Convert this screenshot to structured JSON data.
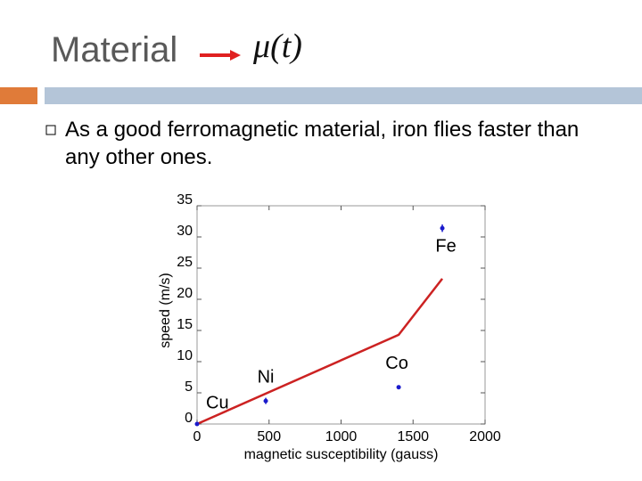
{
  "header": {
    "title": "Material",
    "formula": "μ(t)"
  },
  "bullets": [
    "As a good ferromagnetic material, iron flies faster than any other ones."
  ],
  "chart_data": {
    "type": "scatter",
    "xlabel": "magnetic susceptibility (gauss)",
    "ylabel": "speed (m/s)",
    "xlim": [
      0,
      2000
    ],
    "ylim": [
      0,
      35
    ],
    "xticks": [
      0,
      500,
      1000,
      1500,
      2000
    ],
    "yticks": [
      0,
      5,
      10,
      15,
      20,
      25,
      30,
      35
    ],
    "x": [
      0,
      477,
      1400,
      1703
    ],
    "values": [
      0,
      3.7,
      5.9,
      31.4
    ],
    "errors": [
      0,
      0.5,
      0.3,
      0.6
    ],
    "point_labels": [
      "Cu",
      "Ni",
      "Co",
      "Fe"
    ],
    "color": "#1a1acc",
    "fit_line": {
      "x": [
        0,
        1400,
        1703
      ],
      "values": [
        0,
        14.3,
        23.3
      ],
      "color": "#cc2222"
    }
  }
}
